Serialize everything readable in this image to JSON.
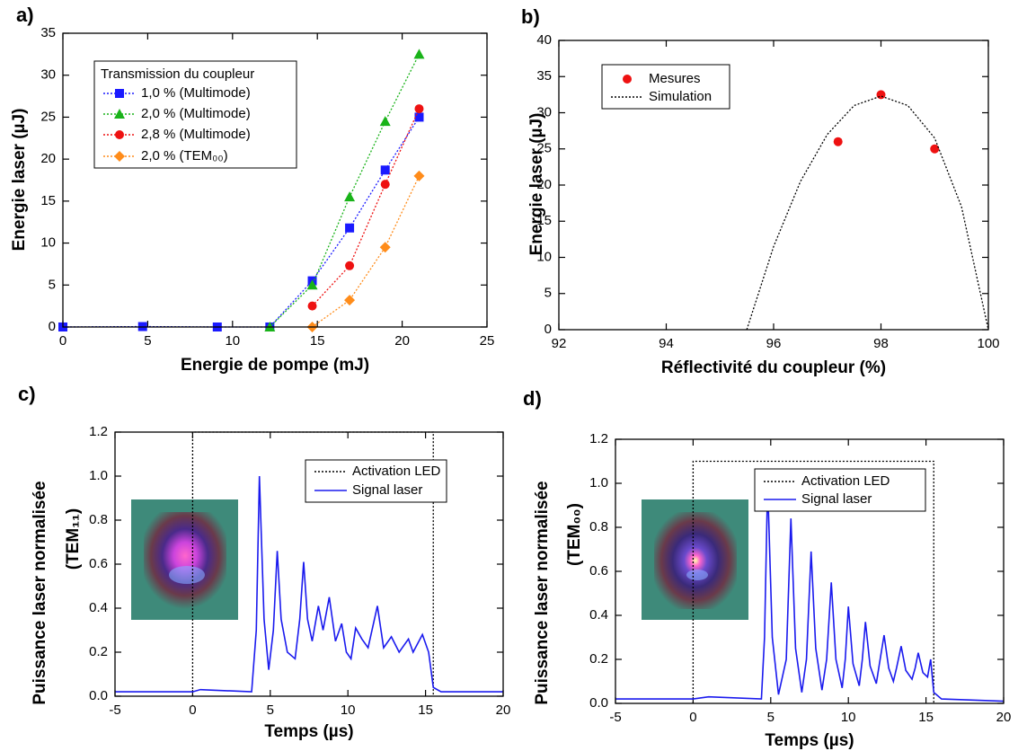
{
  "chart_data": [
    {
      "type": "line",
      "panel_label": "a)",
      "xlabel": "Energie de pompe (mJ)",
      "ylabel": "Energie laser (µJ)",
      "xlim": [
        0,
        25
      ],
      "ylim": [
        0,
        35
      ],
      "xticks": [
        0,
        5,
        10,
        15,
        20,
        25
      ],
      "yticks": [
        0,
        5,
        10,
        15,
        20,
        25,
        30,
        35
      ],
      "legend_title": "Transmission du coupleur",
      "legend": "upper left",
      "series": [
        {
          "name": "1,0 % (Multimode)",
          "color": "#1a1aff",
          "marker": "square",
          "linestyle": "dotted",
          "x": [
            0,
            4.7,
            9.1,
            12.2,
            14.7,
            16.9,
            19,
            21
          ],
          "values": [
            0,
            0.05,
            0,
            0,
            5.5,
            11.8,
            18.7,
            25
          ]
        },
        {
          "name": "2,0 % (Multimode)",
          "color": "#19b319",
          "marker": "triangle",
          "linestyle": "dotted",
          "x": [
            12.2,
            14.7,
            16.9,
            19,
            21
          ],
          "values": [
            0,
            5,
            15.5,
            24.5,
            32.5
          ]
        },
        {
          "name": "2,8 % (Multimode)",
          "color": "#ee1111",
          "marker": "circle",
          "linestyle": "dotted",
          "x": [
            14.7,
            16.9,
            19,
            21
          ],
          "values": [
            2.5,
            7.3,
            17,
            26
          ]
        },
        {
          "name": "2,0 % (TEM₀₀)",
          "color": "#ff8c1a",
          "marker": "diamond",
          "linestyle": "dotted",
          "x": [
            14.7,
            16.9,
            19,
            21
          ],
          "values": [
            0,
            3.2,
            9.5,
            18
          ]
        }
      ]
    },
    {
      "type": "line",
      "panel_label": "b)",
      "xlabel": "Réflectivité du coupleur (%)",
      "ylabel": "Energie laser (µJ)",
      "xlim": [
        92,
        100
      ],
      "ylim": [
        0,
        40
      ],
      "xticks": [
        92,
        94,
        96,
        98,
        100
      ],
      "yticks": [
        0,
        5,
        10,
        15,
        20,
        25,
        30,
        35,
        40
      ],
      "legend": "upper left",
      "series": [
        {
          "name": "Mesures",
          "color": "#ee1111",
          "marker": "circle",
          "linestyle": "none",
          "x": [
            97.2,
            98,
            99
          ],
          "values": [
            26,
            32.5,
            25
          ]
        },
        {
          "name": "Simulation",
          "color": "#000000",
          "marker": "none",
          "linestyle": "dotted",
          "x": [
            95.5,
            96,
            96.5,
            97,
            97.5,
            98,
            98.5,
            99,
            99.5,
            100
          ],
          "values": [
            0,
            11.5,
            20.5,
            27,
            31,
            32.3,
            31,
            26.5,
            17,
            0
          ]
        }
      ]
    },
    {
      "type": "line",
      "panel_label": "c)",
      "xlabel": "Temps (µs)",
      "ylabel": "Puissance laser normalisée",
      "ylabel2": "(TEM₁₁)",
      "xlim": [
        -5,
        20
      ],
      "ylim": [
        0,
        1.2
      ],
      "xticks": [
        -5,
        0,
        5,
        10,
        15,
        20
      ],
      "yticks": [
        {
          "value": 0,
          "label": "0.0"
        },
        0.2,
        0.4,
        0.6,
        0.8,
        {
          "value": 1,
          "label": "1.0"
        },
        1.2
      ],
      "legend": "upper right",
      "series": [
        {
          "name": "Activation LED",
          "color": "#000000",
          "marker": "none",
          "linestyle": "dotted",
          "x": [
            0,
            0,
            15.5,
            15.5
          ],
          "values": [
            0,
            1.2,
            1.2,
            0
          ]
        },
        {
          "name": "Signal laser",
          "color": "#1a1aee",
          "marker": "none",
          "linestyle": "solid",
          "x": [
            -5,
            0,
            0.5,
            3.8,
            4.1,
            4.3,
            4.6,
            4.9,
            5.2,
            5.45,
            5.7,
            6.1,
            6.6,
            6.9,
            7.15,
            7.4,
            7.7,
            8.1,
            8.4,
            8.8,
            9.2,
            9.6,
            9.9,
            10.2,
            10.5,
            10.9,
            11.3,
            11.9,
            12.3,
            12.8,
            13.3,
            13.9,
            14.2,
            14.8,
            15.2,
            15.5,
            16,
            20
          ],
          "values": [
            0.02,
            0.02,
            0.03,
            0.02,
            0.3,
            1,
            0.35,
            0.12,
            0.3,
            0.66,
            0.35,
            0.2,
            0.17,
            0.35,
            0.61,
            0.35,
            0.25,
            0.41,
            0.3,
            0.45,
            0.25,
            0.33,
            0.2,
            0.17,
            0.31,
            0.26,
            0.22,
            0.41,
            0.22,
            0.27,
            0.2,
            0.26,
            0.2,
            0.28,
            0.2,
            0.04,
            0.02,
            0.02
          ]
        }
      ]
    },
    {
      "type": "line",
      "panel_label": "d)",
      "xlabel": "Temps (µs)",
      "ylabel": "Puissance laser normalisée",
      "ylabel2": "(TEM₀₀)",
      "xlim": [
        -5,
        20
      ],
      "ylim": [
        0,
        1.2
      ],
      "xticks": [
        -5,
        0,
        5,
        10,
        15,
        20
      ],
      "yticks": [
        {
          "value": 0,
          "label": "0.0"
        },
        0.2,
        0.4,
        0.6,
        0.8,
        {
          "value": 1,
          "label": "1.0"
        },
        1.2
      ],
      "legend": "upper right",
      "series": [
        {
          "name": "Activation LED",
          "color": "#000000",
          "marker": "none",
          "linestyle": "dotted",
          "x": [
            0,
            0,
            15.5,
            15.5
          ],
          "values": [
            0,
            1.1,
            1.1,
            0
          ]
        },
        {
          "name": "Signal laser",
          "color": "#1a1aee",
          "marker": "none",
          "linestyle": "solid",
          "x": [
            -5,
            0,
            1,
            4.4,
            4.6,
            4.8,
            5.1,
            5.5,
            6,
            6.3,
            6.6,
            7,
            7.3,
            7.6,
            7.9,
            8.3,
            8.6,
            8.9,
            9.2,
            9.6,
            9.8,
            10,
            10.3,
            10.7,
            10.9,
            11.1,
            11.4,
            11.8,
            12,
            12.3,
            12.6,
            12.9,
            13.1,
            13.4,
            13.7,
            14.1,
            14.3,
            14.5,
            14.8,
            15.1,
            15.3,
            15.5,
            16,
            20
          ],
          "values": [
            0.02,
            0.02,
            0.03,
            0.02,
            0.3,
            1,
            0.3,
            0.04,
            0.2,
            0.84,
            0.25,
            0.05,
            0.2,
            0.69,
            0.25,
            0.06,
            0.2,
            0.55,
            0.2,
            0.07,
            0.2,
            0.44,
            0.18,
            0.08,
            0.2,
            0.37,
            0.17,
            0.09,
            0.18,
            0.31,
            0.16,
            0.1,
            0.16,
            0.26,
            0.15,
            0.11,
            0.16,
            0.23,
            0.14,
            0.12,
            0.2,
            0.05,
            0.02,
            0.01
          ]
        }
      ]
    }
  ]
}
